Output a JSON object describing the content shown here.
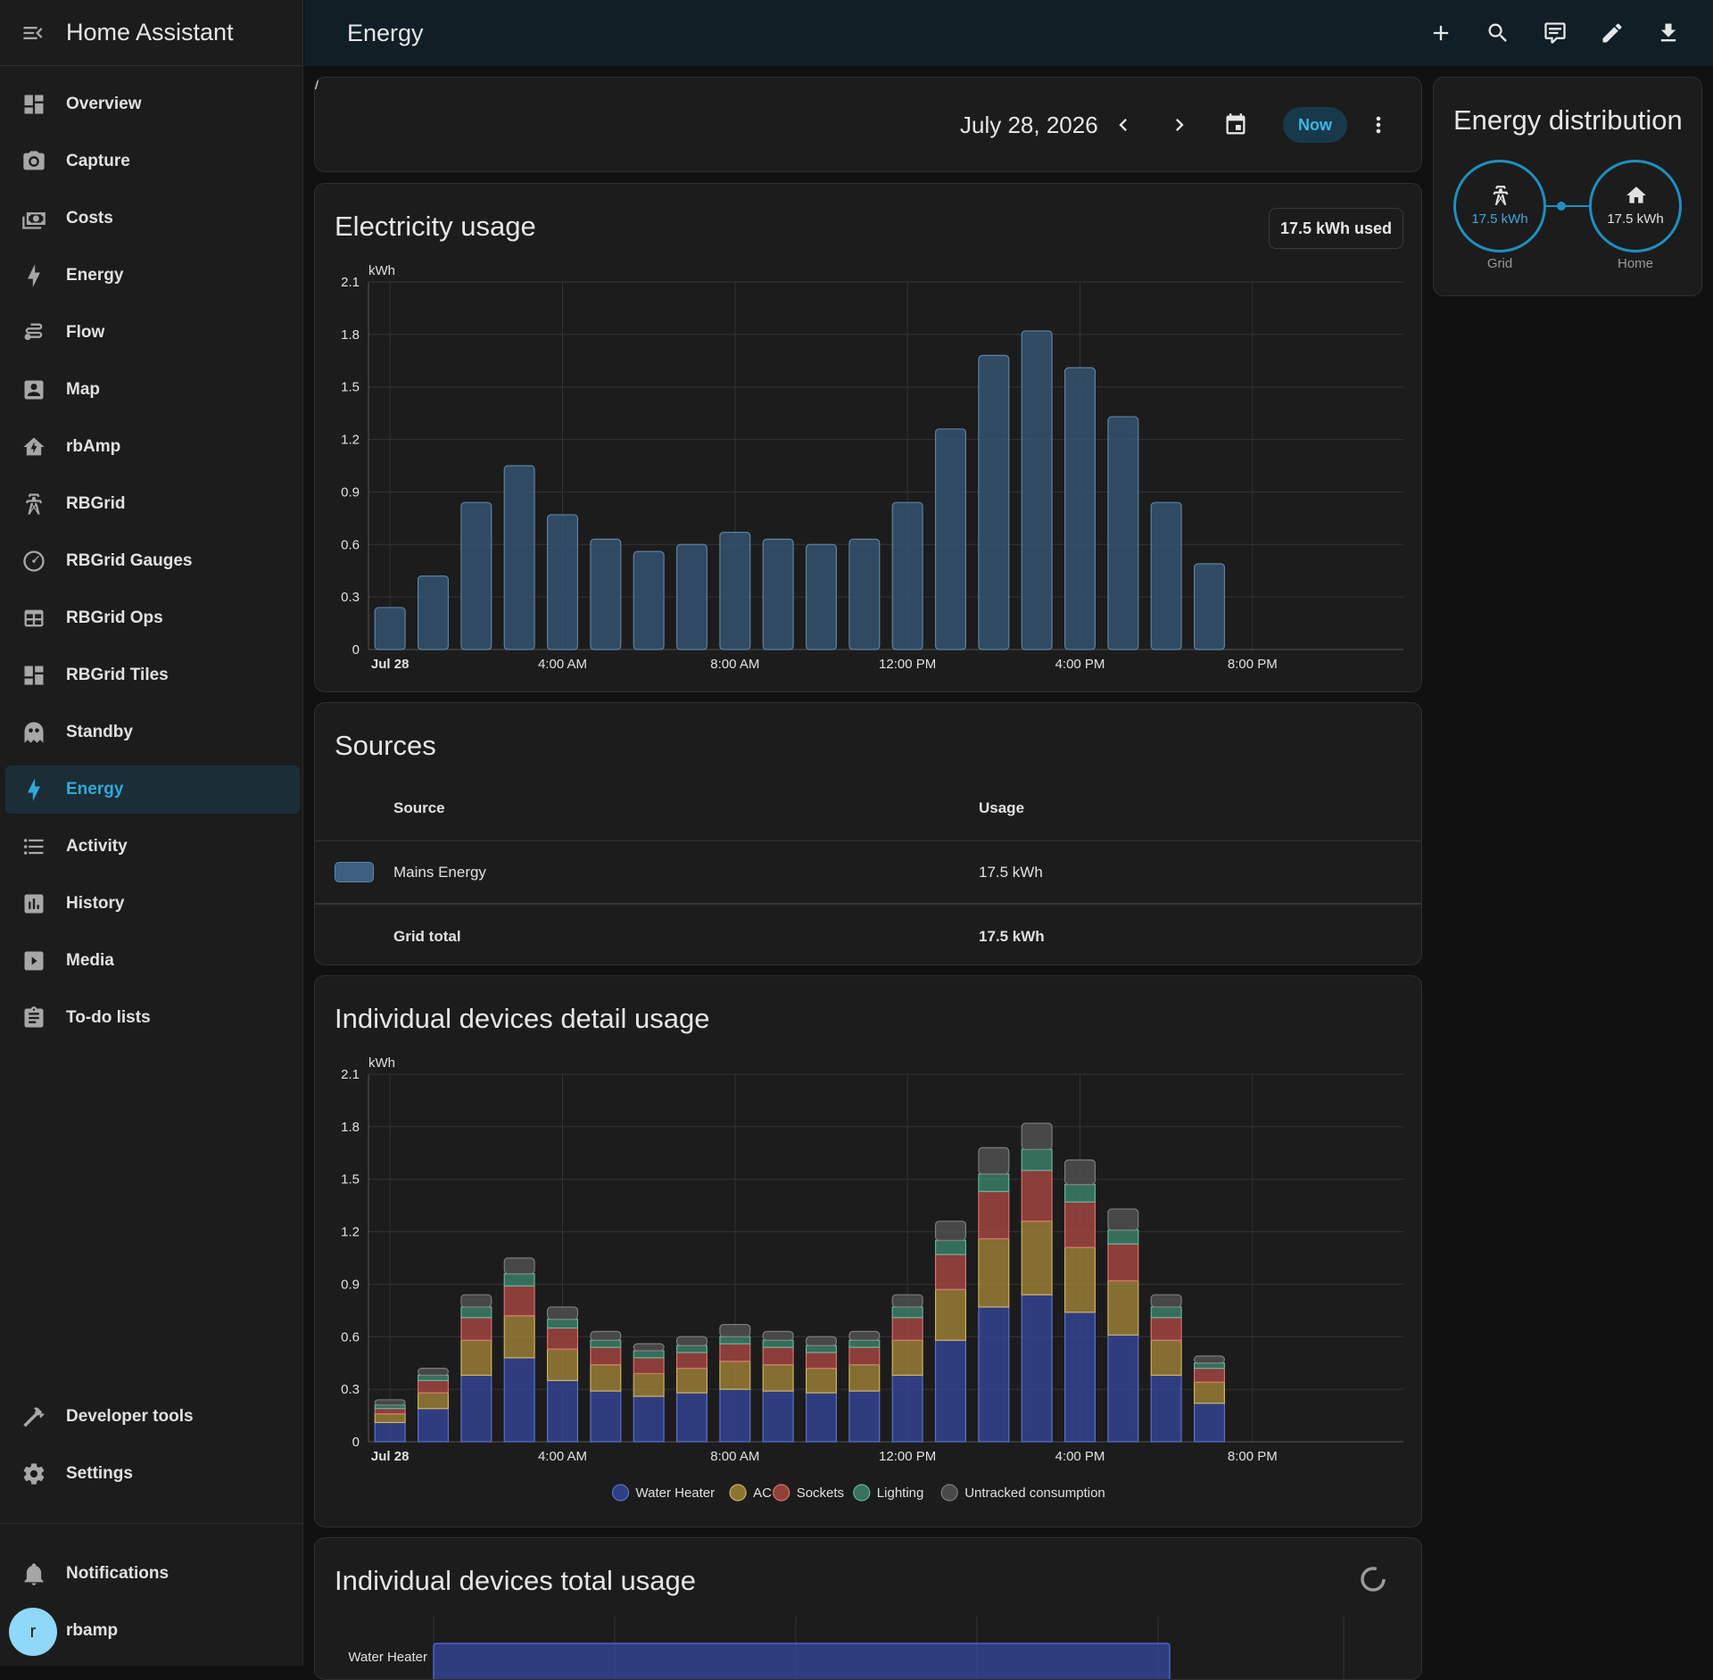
{
  "sidebar": {
    "app_title": "Home Assistant",
    "items": [
      {
        "label": "Overview",
        "icon": "view-dashboard-icon"
      },
      {
        "label": "Capture",
        "icon": "camera-icon"
      },
      {
        "label": "Costs",
        "icon": "cash-icon"
      },
      {
        "label": "Energy",
        "icon": "lightning-bolt-icon"
      },
      {
        "label": "Flow",
        "icon": "flow-icon"
      },
      {
        "label": "Map",
        "icon": "account-box-icon"
      },
      {
        "label": "rbAmp",
        "icon": "home-lightning-icon"
      },
      {
        "label": "RBGrid",
        "icon": "transmission-tower-icon"
      },
      {
        "label": "RBGrid Gauges",
        "icon": "gauge-icon"
      },
      {
        "label": "RBGrid Ops",
        "icon": "table-grid-icon"
      },
      {
        "label": "RBGrid Tiles",
        "icon": "view-dashboard-icon"
      },
      {
        "label": "Standby",
        "icon": "ghost-icon"
      },
      {
        "label": "Energy",
        "icon": "lightning-bolt-icon",
        "active": true
      },
      {
        "label": "Activity",
        "icon": "format-list-icon"
      },
      {
        "label": "History",
        "icon": "chart-box-icon"
      },
      {
        "label": "Media",
        "icon": "play-box-icon"
      },
      {
        "label": "To-do lists",
        "icon": "clipboard-list-icon"
      }
    ],
    "developer_tools": "Developer tools",
    "settings": "Settings",
    "notifications": "Notifications",
    "user_name": "rbamp",
    "user_initial": "r"
  },
  "topbar": {
    "title": "Energy",
    "actions": [
      "plus-icon",
      "search-icon",
      "comment-icon",
      "pencil-icon",
      "download-icon"
    ]
  },
  "date_picker": {
    "date": "July 28, 2026",
    "now_label": "Now"
  },
  "usage_card": {
    "title": "Electricity usage",
    "badge": "17.5 kWh used"
  },
  "sources": {
    "title": "Sources",
    "col_source": "Source",
    "col_usage": "Usage",
    "rows": [
      {
        "name": "Mains Energy",
        "usage": "17.5 kWh",
        "color": "#3d5f80"
      }
    ],
    "total_label": "Grid total",
    "total_value": "17.5 kWh"
  },
  "detail_card": {
    "title": "Individual devices detail usage"
  },
  "total_card": {
    "title": "Individual devices total usage",
    "first_row_label": "Water Heater"
  },
  "distribution": {
    "title": "Energy distribution",
    "grid_value": "17.5 kWh",
    "grid_label": "Grid",
    "home_value": "17.5 kWh",
    "home_label": "Home"
  },
  "colors": {
    "accent": "#31a9d9",
    "usage_bar": "#365a7a",
    "water_heater": "#3548a0",
    "ac": "#a8893a",
    "sockets": "#b04a44",
    "lighting": "#3f8a72",
    "untracked": "#555555"
  },
  "chart_data": [
    {
      "type": "bar",
      "title": "Electricity usage",
      "ylabel": "kWh",
      "ylim": [
        0,
        2.1
      ],
      "yticks": [
        "0",
        "0.3",
        "0.6",
        "0.9",
        "1.2",
        "1.5",
        "1.8",
        "2.1"
      ],
      "xtick_labels": [
        "Jul 28",
        "4:00 AM",
        "8:00 AM",
        "12:00 PM",
        "4:00 PM",
        "8:00 PM"
      ],
      "categories": [
        "00:00",
        "01:00",
        "02:00",
        "03:00",
        "04:00",
        "05:00",
        "06:00",
        "07:00",
        "08:00",
        "09:00",
        "10:00",
        "11:00",
        "12:00",
        "13:00",
        "14:00",
        "15:00",
        "16:00",
        "17:00",
        "18:00",
        "19:00"
      ],
      "series": [
        {
          "name": "Mains Energy",
          "values": [
            0.24,
            0.42,
            0.84,
            1.05,
            0.77,
            0.63,
            0.56,
            0.6,
            0.67,
            0.63,
            0.6,
            0.63,
            0.84,
            1.26,
            1.68,
            1.82,
            1.61,
            1.33,
            0.84,
            0.49
          ]
        }
      ],
      "grid": true
    },
    {
      "type": "bar",
      "stacked": true,
      "title": "Individual devices detail usage",
      "ylabel": "kWh",
      "ylim": [
        0,
        2.1
      ],
      "yticks": [
        "0",
        "0.3",
        "0.6",
        "0.9",
        "1.2",
        "1.5",
        "1.8",
        "2.1"
      ],
      "xtick_labels": [
        "Jul 28",
        "4:00 AM",
        "8:00 AM",
        "12:00 PM",
        "4:00 PM",
        "8:00 PM"
      ],
      "categories": [
        "00:00",
        "01:00",
        "02:00",
        "03:00",
        "04:00",
        "05:00",
        "06:00",
        "07:00",
        "08:00",
        "09:00",
        "10:00",
        "11:00",
        "12:00",
        "13:00",
        "14:00",
        "15:00",
        "16:00",
        "17:00",
        "18:00",
        "19:00"
      ],
      "series": [
        {
          "name": "Water Heater",
          "values": [
            0.11,
            0.19,
            0.38,
            0.48,
            0.35,
            0.29,
            0.26,
            0.28,
            0.3,
            0.29,
            0.28,
            0.29,
            0.38,
            0.58,
            0.77,
            0.84,
            0.74,
            0.61,
            0.38,
            0.22
          ]
        },
        {
          "name": "AC",
          "values": [
            0.05,
            0.09,
            0.2,
            0.24,
            0.18,
            0.15,
            0.13,
            0.14,
            0.16,
            0.15,
            0.14,
            0.15,
            0.2,
            0.29,
            0.39,
            0.42,
            0.37,
            0.31,
            0.2,
            0.12
          ]
        },
        {
          "name": "Sockets",
          "values": [
            0.03,
            0.07,
            0.13,
            0.17,
            0.12,
            0.1,
            0.09,
            0.09,
            0.1,
            0.1,
            0.09,
            0.1,
            0.13,
            0.2,
            0.27,
            0.29,
            0.26,
            0.21,
            0.13,
            0.08
          ]
        },
        {
          "name": "Lighting",
          "values": [
            0.02,
            0.03,
            0.06,
            0.07,
            0.05,
            0.04,
            0.04,
            0.04,
            0.04,
            0.04,
            0.04,
            0.04,
            0.06,
            0.08,
            0.1,
            0.12,
            0.1,
            0.08,
            0.06,
            0.03
          ]
        },
        {
          "name": "Untracked consumption",
          "values": [
            0.03,
            0.04,
            0.07,
            0.09,
            0.07,
            0.05,
            0.04,
            0.05,
            0.07,
            0.05,
            0.05,
            0.05,
            0.07,
            0.11,
            0.15,
            0.15,
            0.14,
            0.12,
            0.07,
            0.04
          ]
        }
      ],
      "legend": "bottom",
      "grid": true
    }
  ]
}
